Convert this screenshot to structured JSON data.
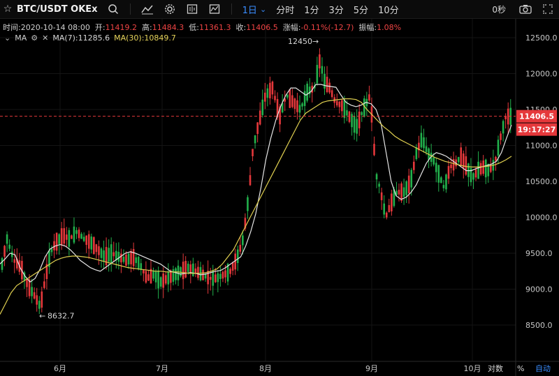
{
  "toolbar": {
    "symbol": "BTC/USDT OKEx",
    "intervals": [
      "1日",
      "分时",
      "1分",
      "3分",
      "5分",
      "10分"
    ],
    "active_interval_caret": "⌄",
    "clock": "0秒"
  },
  "info": {
    "time_label": "时间:",
    "time_value": "2020-10-14 08:00",
    "open_label": "开:",
    "open_value": "11419.2",
    "high_label": "高:",
    "high_value": "11484.3",
    "low_label": "低:",
    "low_value": "11361.3",
    "close_label": "收:",
    "close_value": "11406.5",
    "change_label": "涨幅:",
    "change_value": "-0.11%(-12.7)",
    "amp_label": "振幅:",
    "amp_value": "1.08%"
  },
  "ma": {
    "label": "MA",
    "ma7_label": "MA(7):11285.6",
    "ma30_label": "MA(30):10849.7"
  },
  "colors": {
    "up": "#22b14c",
    "down": "#e5383b",
    "ma7": "#e6e6e6",
    "ma30": "#e0d050",
    "price_line": "#e5383b",
    "accent": "#3a8dff"
  },
  "axis": {
    "y_ticks": [
      "12500.0",
      "12000.0",
      "11500.0",
      "11000.0",
      "10500.0",
      "10000.0",
      "9500.0",
      "9000.0",
      "8500.0"
    ],
    "x_ticks": [
      "6月",
      "7月",
      "8月",
      "9月",
      "10月"
    ],
    "price_tag": "11406.5",
    "countdown_tag": "19:17:27",
    "log_toggle": "对数",
    "percent_toggle": "%",
    "auto_toggle": "自动"
  },
  "annotations": {
    "high_label": "12450",
    "low_label": "8632.7"
  },
  "chart_data": {
    "type": "candlestick",
    "title": "BTC/USDT OKEx",
    "x_ticks": [
      "6月",
      "7月",
      "8月",
      "9月",
      "10月"
    ],
    "ylim": [
      8200,
      12700
    ],
    "last_price": 11406.5,
    "period_high": 12450,
    "period_low": 8632.7,
    "series": [
      {
        "name": "MA(7)",
        "values": [
          9350,
          9420,
          9500,
          9480,
          9300,
          9180,
          9100,
          9150,
          9280,
          9450,
          9560,
          9600,
          9620,
          9600,
          9550,
          9480,
          9400,
          9350,
          9300,
          9270,
          9250,
          9300,
          9350,
          9400,
          9450,
          9500,
          9520,
          9500,
          9470,
          9440,
          9410,
          9380,
          9350,
          9300,
          9250,
          9230,
          9210,
          9220,
          9230,
          9220,
          9200,
          9210,
          9230,
          9250,
          9260,
          9300,
          9350,
          9400,
          9450,
          9600,
          9800,
          10050,
          10400,
          10800,
          11100,
          11350,
          11550,
          11700,
          11800,
          11800,
          11750,
          11700,
          11750,
          11850,
          11850,
          11830,
          11820,
          11810,
          11700,
          11600,
          11560,
          11540,
          11560,
          11600,
          11580,
          11500,
          11300,
          10900,
          10500,
          10300,
          10250,
          10280,
          10350,
          10450,
          10600,
          10750,
          10850,
          10900,
          10880,
          10850,
          10800,
          10750,
          10700,
          10650,
          10650,
          10680,
          10700,
          10720,
          10740,
          10780,
          10900,
          11100,
          11285.6
        ]
      },
      {
        "name": "MA(30)",
        "values": [
          8650,
          8800,
          8950,
          9050,
          9100,
          9150,
          9200,
          9250,
          9300,
          9350,
          9400,
          9430,
          9450,
          9460,
          9460,
          9450,
          9440,
          9420,
          9400,
          9380,
          9360,
          9340,
          9320,
          9300,
          9290,
          9280,
          9270,
          9260,
          9250,
          9250,
          9240,
          9240,
          9240,
          9230,
          9220,
          9220,
          9220,
          9230,
          9250,
          9280,
          9350,
          9450,
          9550,
          9700,
          9850,
          10000,
          10150,
          10300,
          10450,
          10600,
          10750,
          10900,
          11050,
          11200,
          11350,
          11450,
          11500,
          11550,
          11600,
          11620,
          11630,
          11640,
          11650,
          11650,
          11640,
          11600,
          11500,
          11420,
          11340,
          11260,
          11200,
          11130,
          11080,
          11040,
          11000,
          10960,
          10920,
          10880,
          10840,
          10810,
          10780,
          10760,
          10740,
          10720,
          10705,
          10700,
          10700,
          10705,
          10715,
          10730,
          10760,
          10800,
          10849.7
        ]
      }
    ]
  }
}
